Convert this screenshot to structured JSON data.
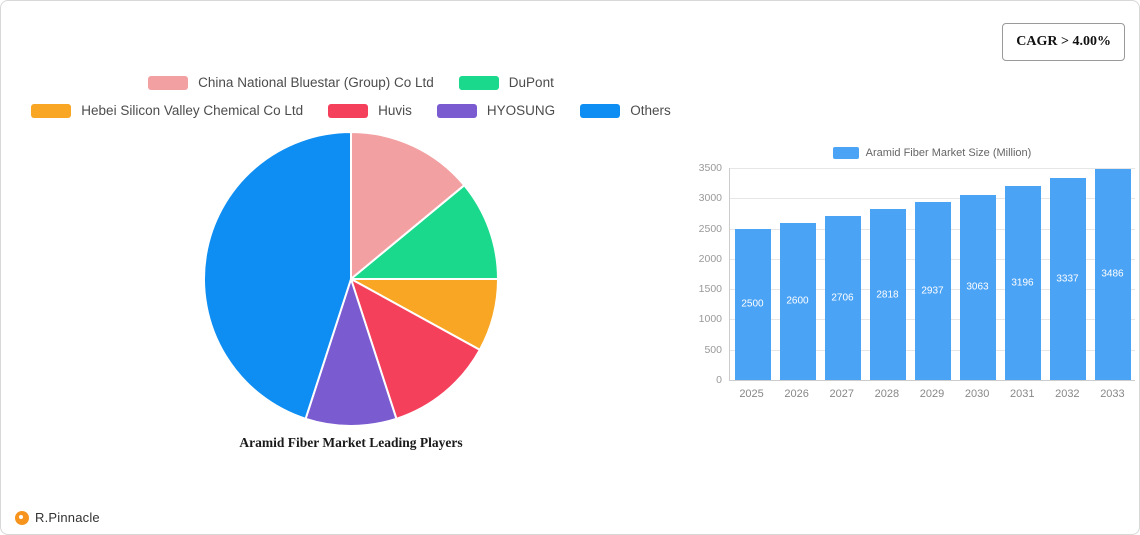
{
  "cagr_label": "CAGR > 4.00%",
  "footer": {
    "brand": "R.Pinnacle"
  },
  "chart_data": [
    {
      "type": "pie",
      "title": "Aramid Fiber Market Leading Players",
      "legend_position": "top",
      "labels": [
        "China National Bluestar (Group) Co  Ltd",
        "DuPont",
        "Hebei Silicon Valley Chemical Co  Ltd",
        "Huvis",
        "HYOSUNG",
        "Others"
      ],
      "colors": [
        "#F2A0A2",
        "#1BD98C",
        "#F8A623",
        "#F5405C",
        "#7A5BD0",
        "#0E8EF2"
      ],
      "values": [
        14,
        11,
        8,
        12,
        10,
        45
      ]
    },
    {
      "type": "bar",
      "legend": "Aramid Fiber Market Size (Million)",
      "categories": [
        "2025",
        "2026",
        "2027",
        "2028",
        "2029",
        "2030",
        "2031",
        "2032",
        "2033"
      ],
      "values": [
        2500,
        2600,
        2706,
        2818,
        2937,
        3063,
        3196,
        3337,
        3486
      ],
      "bar_color": "#4BA3F5",
      "ylim": [
        0,
        3500
      ],
      "ytick_step": 500,
      "grid": true,
      "legend_position": "top"
    }
  ]
}
